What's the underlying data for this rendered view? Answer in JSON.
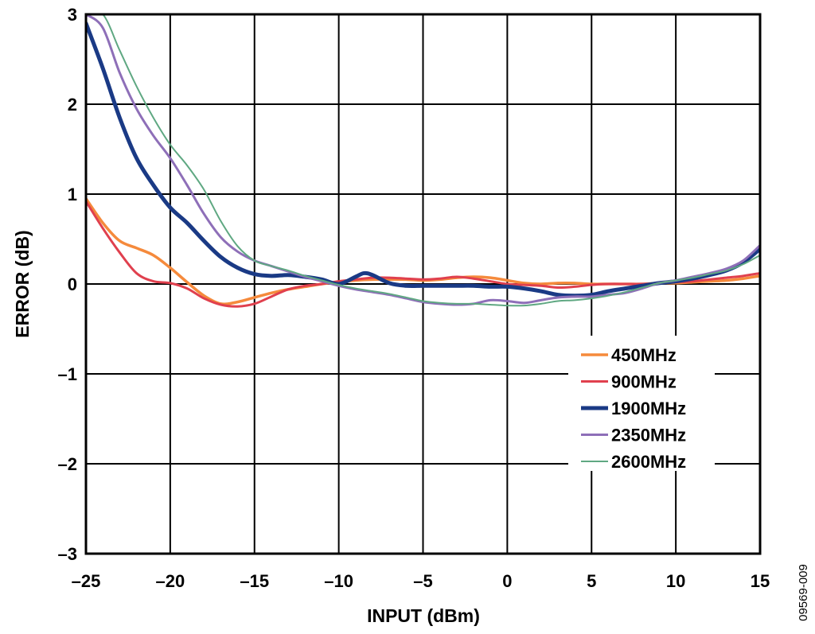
{
  "chart_data": {
    "type": "line",
    "xlabel": "INPUT (dBm)",
    "ylabel": "ERROR (dB)",
    "xlim": [
      -25,
      15
    ],
    "ylim": [
      -3,
      3
    ],
    "x_ticks": [
      -25,
      -20,
      -15,
      -10,
      -5,
      0,
      5,
      10,
      15
    ],
    "y_ticks": [
      -3,
      -2,
      -1,
      0,
      1,
      2,
      3
    ],
    "x_tick_labels": [
      "–25",
      "–20",
      "–15",
      "–10",
      "–5",
      "0",
      "5",
      "10",
      "15"
    ],
    "y_tick_labels": [
      "–3",
      "–2",
      "–1",
      "0",
      "1",
      "2",
      "3"
    ],
    "grid": true,
    "legend_position": "lower-right",
    "figure_id": "09569-009",
    "series": [
      {
        "name": "450MHz",
        "color": "#F58A3C",
        "x": [
          -25,
          -24,
          -23,
          -22,
          -21,
          -20,
          -19,
          -18,
          -17,
          -16,
          -15,
          -14,
          -13,
          -12,
          -11,
          -10,
          -9,
          -8,
          -7,
          -6,
          -5,
          -4,
          -3,
          -2,
          -1,
          0,
          1,
          2,
          3,
          4,
          5,
          6,
          7,
          8,
          9,
          10,
          11,
          12,
          13,
          14,
          15
        ],
        "y": [
          0.95,
          0.68,
          0.48,
          0.4,
          0.32,
          0.18,
          0.02,
          -0.13,
          -0.22,
          -0.2,
          -0.15,
          -0.1,
          -0.06,
          -0.03,
          0.0,
          0.02,
          0.04,
          0.05,
          0.05,
          0.05,
          0.04,
          0.05,
          0.07,
          0.08,
          0.07,
          0.04,
          0.01,
          0.0,
          0.01,
          0.01,
          0.0,
          0.0,
          0.0,
          0.0,
          0.01,
          0.01,
          0.02,
          0.03,
          0.04,
          0.06,
          0.09
        ]
      },
      {
        "name": "900MHz",
        "color": "#E0404E",
        "x": [
          -25,
          -24,
          -23,
          -22,
          -21,
          -20,
          -19,
          -18,
          -17,
          -16,
          -15,
          -14,
          -13,
          -12,
          -11,
          -10,
          -9,
          -8,
          -7,
          -6,
          -5,
          -4,
          -3,
          -2,
          -1,
          0,
          1,
          2,
          3,
          4,
          5,
          6,
          7,
          8,
          9,
          10,
          11,
          12,
          13,
          14,
          15
        ],
        "y": [
          0.92,
          0.62,
          0.35,
          0.12,
          0.03,
          0.01,
          -0.05,
          -0.16,
          -0.23,
          -0.25,
          -0.22,
          -0.14,
          -0.06,
          -0.02,
          0.0,
          0.03,
          0.05,
          0.07,
          0.07,
          0.06,
          0.05,
          0.06,
          0.08,
          0.06,
          0.03,
          0.0,
          -0.01,
          -0.02,
          -0.04,
          -0.03,
          -0.01,
          0.0,
          0.0,
          0.0,
          0.01,
          0.02,
          0.03,
          0.05,
          0.07,
          0.09,
          0.12
        ]
      },
      {
        "name": "1900MHz",
        "color": "#1A3A85",
        "x": [
          -25,
          -24,
          -23,
          -22,
          -21,
          -20,
          -19,
          -18,
          -17,
          -16,
          -15,
          -14,
          -13,
          -12,
          -11,
          -10,
          -9,
          -8.5,
          -8,
          -7,
          -6,
          -5,
          -4,
          -3,
          -2,
          -1,
          0,
          1,
          2,
          3,
          4,
          5,
          6,
          7,
          8,
          9,
          10,
          11,
          12,
          13,
          14,
          15
        ],
        "y": [
          2.9,
          2.4,
          1.85,
          1.4,
          1.1,
          0.85,
          0.68,
          0.48,
          0.3,
          0.18,
          0.11,
          0.09,
          0.1,
          0.08,
          0.05,
          0.0,
          0.08,
          0.12,
          0.1,
          0.01,
          -0.02,
          -0.02,
          -0.02,
          -0.02,
          -0.02,
          -0.03,
          -0.03,
          -0.05,
          -0.08,
          -0.12,
          -0.13,
          -0.12,
          -0.08,
          -0.05,
          -0.02,
          0.01,
          0.03,
          0.06,
          0.1,
          0.15,
          0.24,
          0.39
        ]
      },
      {
        "name": "2350MHz",
        "color": "#8E6FB8",
        "x": [
          -25,
          -24,
          -23,
          -22,
          -21,
          -20,
          -19,
          -18,
          -17,
          -16,
          -15,
          -14,
          -13,
          -12,
          -11,
          -10,
          -9,
          -8,
          -7,
          -6,
          -5,
          -4,
          -3,
          -2,
          -1,
          0,
          1,
          2,
          3,
          4,
          5,
          6,
          7,
          8,
          9,
          10,
          11,
          12,
          13,
          14,
          15
        ],
        "y": [
          3.0,
          2.85,
          2.35,
          1.95,
          1.65,
          1.4,
          1.1,
          0.78,
          0.52,
          0.36,
          0.26,
          0.2,
          0.14,
          0.08,
          0.03,
          -0.02,
          -0.06,
          -0.09,
          -0.12,
          -0.16,
          -0.2,
          -0.22,
          -0.23,
          -0.22,
          -0.18,
          -0.19,
          -0.21,
          -0.18,
          -0.15,
          -0.14,
          -0.14,
          -0.12,
          -0.1,
          -0.05,
          0.01,
          0.04,
          0.08,
          0.12,
          0.17,
          0.26,
          0.43
        ]
      },
      {
        "name": "2600MHz",
        "color": "#5FA882",
        "x": [
          -25,
          -24,
          -23,
          -22,
          -21,
          -20,
          -19,
          -18,
          -17,
          -16,
          -15,
          -14,
          -13,
          -12,
          -11,
          -10,
          -9,
          -8,
          -7,
          -6,
          -5,
          -4,
          -3,
          -2,
          -1,
          0,
          1,
          2,
          3,
          4,
          5,
          6,
          7,
          8,
          9,
          10,
          11,
          12,
          13,
          14,
          15
        ],
        "y": [
          3.0,
          3.0,
          2.6,
          2.2,
          1.85,
          1.55,
          1.32,
          1.05,
          0.7,
          0.42,
          0.26,
          0.2,
          0.15,
          0.09,
          0.04,
          -0.01,
          -0.05,
          -0.08,
          -0.11,
          -0.15,
          -0.19,
          -0.21,
          -0.22,
          -0.22,
          -0.23,
          -0.24,
          -0.24,
          -0.22,
          -0.19,
          -0.18,
          -0.16,
          -0.13,
          -0.09,
          -0.04,
          0.01,
          0.04,
          0.07,
          0.11,
          0.15,
          0.22,
          0.32
        ]
      }
    ]
  }
}
